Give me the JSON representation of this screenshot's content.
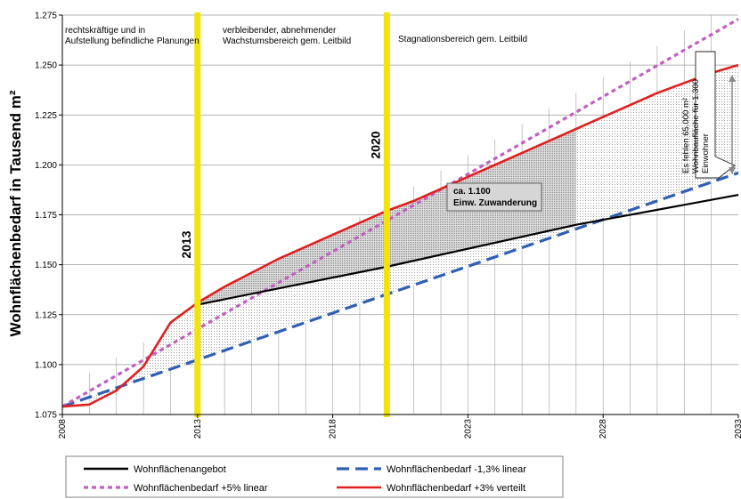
{
  "chart_data": {
    "type": "line",
    "ylabel": "Wohnflächenbedarf in Tausend m²",
    "xlim": [
      2008,
      2033
    ],
    "ylim": [
      1.075,
      1.275
    ],
    "xticks": [
      "2008",
      "2013",
      "2018",
      "2023",
      "2028",
      "2033"
    ],
    "yticks": [
      "1.075",
      "1.100",
      "1.125",
      "1.150",
      "1.175",
      "1.200",
      "1.225",
      "1.250",
      "1.275"
    ],
    "grid": "horizontal and vertical (yearly)",
    "legend_position": "bottom",
    "region_notes": [
      "rechtskräftige und in Aufstellung befindliche Planungen",
      "verbleibender, abnehmender Wachstumsbereich gem. Leitbild",
      "Stagnationsbereich gem. Leitbild"
    ],
    "vertical_markers": [
      {
        "x": 2013.0,
        "label": "2013",
        "color": "#f2e30c"
      },
      {
        "x": 2020.0,
        "label": "2020",
        "color": "#f2e30c"
      }
    ],
    "annotation_box": "ca. 1.100 Einw. Zuwanderung",
    "callout_lines": [
      "Es fehlen 65.000 m²",
      "Wohnbaufläche für 1.300",
      "Einwohner"
    ],
    "series": [
      {
        "name": "Wohnflächenangebot",
        "color": "#000000",
        "style": "solid",
        "x": [
          2013.0,
          2020.0,
          2027.0,
          2033.0
        ],
        "y": [
          1.13,
          1.149,
          1.17,
          1.185
        ]
      },
      {
        "name": "Wohnflächenbedarf -1,3% linear",
        "color": "#2f5fb3",
        "style": "long-dash",
        "x": [
          2008,
          2033
        ],
        "y": [
          1.079,
          1.196
        ]
      },
      {
        "name": "Wohnflächenbedarf +5% linear",
        "color": "#c060c0",
        "style": "dotted",
        "x": [
          2008,
          2033
        ],
        "y": [
          1.079,
          1.273
        ]
      },
      {
        "name": "Wohnflächenbedarf +3% verteilt",
        "color": "#e02020",
        "style": "solid",
        "x": [
          2008,
          2009,
          2010,
          2011,
          2012,
          2013,
          2014,
          2015,
          2016,
          2017,
          2018,
          2019,
          2020,
          2021,
          2022,
          2023,
          2024,
          2025,
          2026,
          2027,
          2028,
          2029,
          2030,
          2031,
          2032,
          2033
        ],
        "y": [
          1.079,
          1.08,
          1.087,
          1.099,
          1.121,
          1.131,
          1.139,
          1.146,
          1.153,
          1.159,
          1.165,
          1.171,
          1.177,
          1.182,
          1.188,
          1.194,
          1.2,
          1.206,
          1.212,
          1.218,
          1.224,
          1.23,
          1.236,
          1.241,
          1.246,
          1.25
        ]
      }
    ]
  }
}
